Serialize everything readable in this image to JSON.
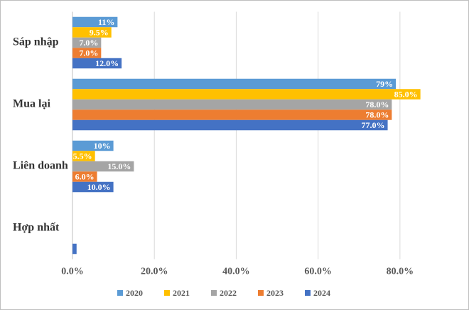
{
  "chart_data": {
    "type": "hbar",
    "categories": [
      "Sáp nhập",
      "Mua lại",
      "Liên doanh",
      "Hợp nhất"
    ],
    "series": [
      {
        "name": "2020",
        "color": "#5b9bd5",
        "values": [
          11,
          79,
          10,
          null
        ],
        "value_labels": [
          "11%",
          "79%",
          "10%",
          null
        ]
      },
      {
        "name": "2021",
        "color": "#ffc000",
        "values": [
          9.5,
          85.0,
          5.5,
          null
        ],
        "value_labels": [
          "9.5%",
          "85.0%",
          "5.5%",
          null
        ]
      },
      {
        "name": "2022",
        "color": "#a5a5a5",
        "values": [
          7.0,
          78.0,
          15.0,
          null
        ],
        "value_labels": [
          "7.0%",
          "78.0%",
          "15.0%",
          null
        ]
      },
      {
        "name": "2023",
        "color": "#ed7d31",
        "values": [
          7.0,
          78.0,
          6.0,
          null
        ],
        "value_labels": [
          "7.0%",
          "78.0%",
          "6.0%",
          null
        ]
      },
      {
        "name": "2024",
        "color": "#4472c4",
        "values": [
          12.0,
          77.0,
          10.0,
          1.0
        ],
        "value_labels": [
          "12.0%",
          "77.0%",
          "10.0%",
          null
        ]
      }
    ],
    "xlim": [
      0,
      96
    ],
    "xticks": [
      {
        "value": 0,
        "label": "0.0%"
      },
      {
        "value": 20,
        "label": "20.0%"
      },
      {
        "value": 40,
        "label": "40.0%"
      },
      {
        "value": 60,
        "label": "60.0%"
      },
      {
        "value": 80,
        "label": "80.0%"
      }
    ],
    "grid": true,
    "legend": "bottom"
  }
}
